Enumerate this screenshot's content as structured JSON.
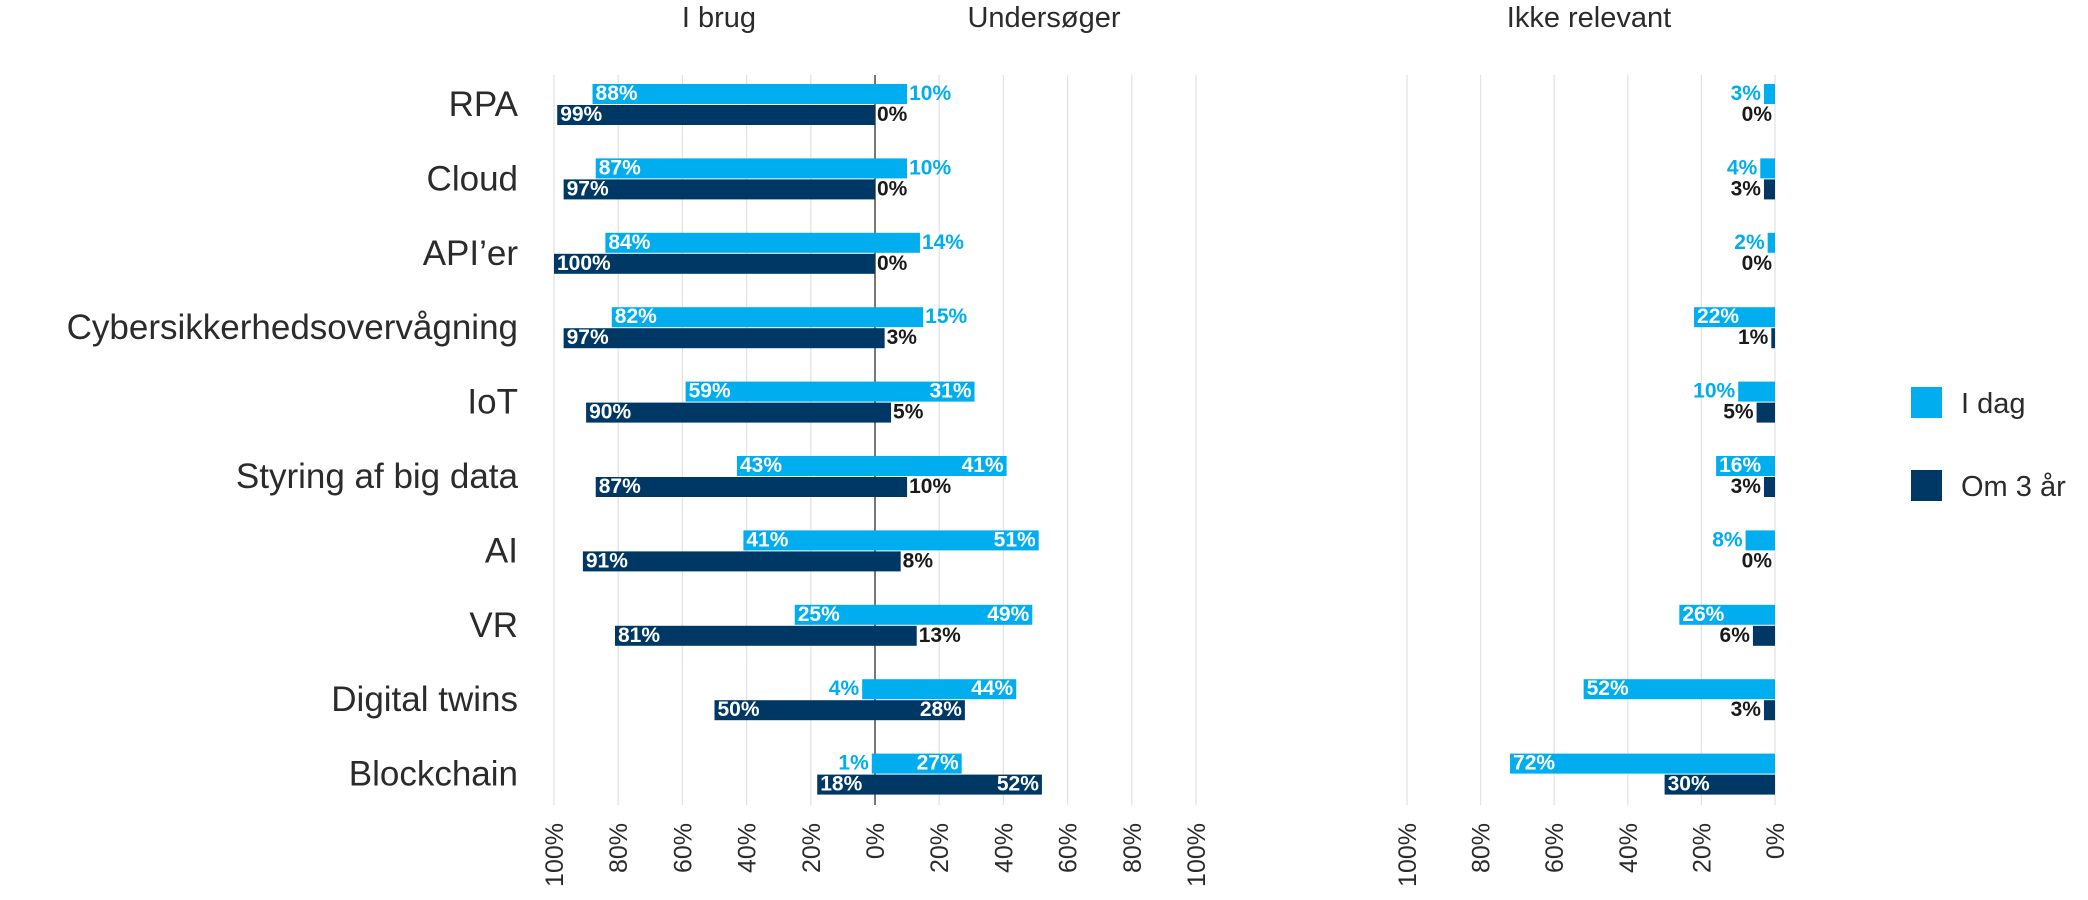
{
  "chart_data": {
    "type": "bar",
    "panels": {
      "in_use": "I brug",
      "investigating": "Undersøger",
      "not_relevant": "Ikke relevant"
    },
    "categories": [
      "RPA",
      "Cloud",
      "API’er",
      "Cybersikkerhedsovervågning",
      "IoT",
      "Styring af big data",
      "AI",
      "VR",
      "Digital twins",
      "Blockchain"
    ],
    "series": [
      {
        "name": "I dag",
        "color": "#00aeef",
        "i_brug": [
          88,
          87,
          84,
          82,
          59,
          43,
          41,
          25,
          4,
          1
        ],
        "undersoeger": [
          10,
          10,
          14,
          15,
          31,
          41,
          51,
          49,
          44,
          27
        ],
        "ikke_relevant": [
          3,
          4,
          2,
          22,
          10,
          16,
          8,
          26,
          52,
          72
        ]
      },
      {
        "name": "Om 3 år",
        "color": "#003865",
        "i_brug": [
          99,
          97,
          100,
          97,
          90,
          87,
          91,
          81,
          50,
          18
        ],
        "undersoeger": [
          0,
          0,
          0,
          3,
          5,
          10,
          8,
          13,
          28,
          52
        ],
        "ikke_relevant": [
          0,
          3,
          0,
          1,
          5,
          3,
          0,
          6,
          3,
          30
        ]
      }
    ],
    "axis_ticks_left": [
      "100%",
      "80%",
      "60%",
      "40%",
      "20%",
      "0%",
      "20%",
      "40%",
      "60%",
      "80%",
      "100%"
    ],
    "axis_ticks_right": [
      "100%",
      "80%",
      "60%",
      "40%",
      "20%",
      "0%"
    ],
    "ylim": [
      0,
      100
    ],
    "grid": true,
    "legend_position": "right"
  }
}
